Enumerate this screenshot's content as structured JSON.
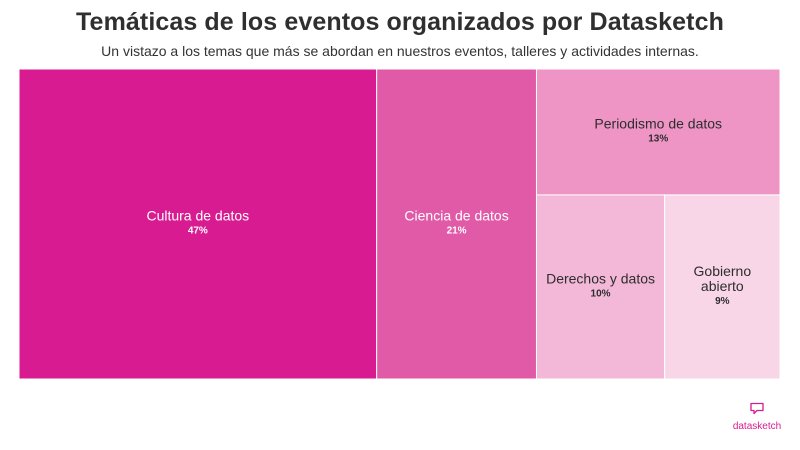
{
  "header": {
    "title": "Temáticas de los eventos organizados por Datasketch",
    "subtitle": "Un vistazo a los temas que más se abordan en nuestros eventos, talleres y actividades internas."
  },
  "chart_data": {
    "type": "treemap",
    "title": "Temáticas de los eventos organizados por Datasketch",
    "subtitle": "Un vistazo a los temas que más se abordan en nuestros eventos, talleres y actividades internas.",
    "unit": "%",
    "items": [
      {
        "label": "Cultura de datos",
        "value": 47,
        "value_label": "47%",
        "color": "#d91b91",
        "text_color": "#ffffff"
      },
      {
        "label": "Ciencia de datos",
        "value": 21,
        "value_label": "21%",
        "color": "#e15aa8",
        "text_color": "#ffffff"
      },
      {
        "label": "Periodismo de datos",
        "value": 13,
        "value_label": "13%",
        "color": "#ee95c6",
        "text_color": "#2d2d2d"
      },
      {
        "label": "Derechos y datos",
        "value": 10,
        "value_label": "10%",
        "color": "#f3b8d7",
        "text_color": "#2d2d2d"
      },
      {
        "label": "Gobierno abierto",
        "value": 9,
        "value_label": "9%",
        "color": "#f8d6e7",
        "text_color": "#2d2d2d"
      }
    ]
  },
  "branding": {
    "logo_text": "datasketch",
    "logo_icon": "speech-bubble-icon",
    "color": "#d81b8e"
  }
}
